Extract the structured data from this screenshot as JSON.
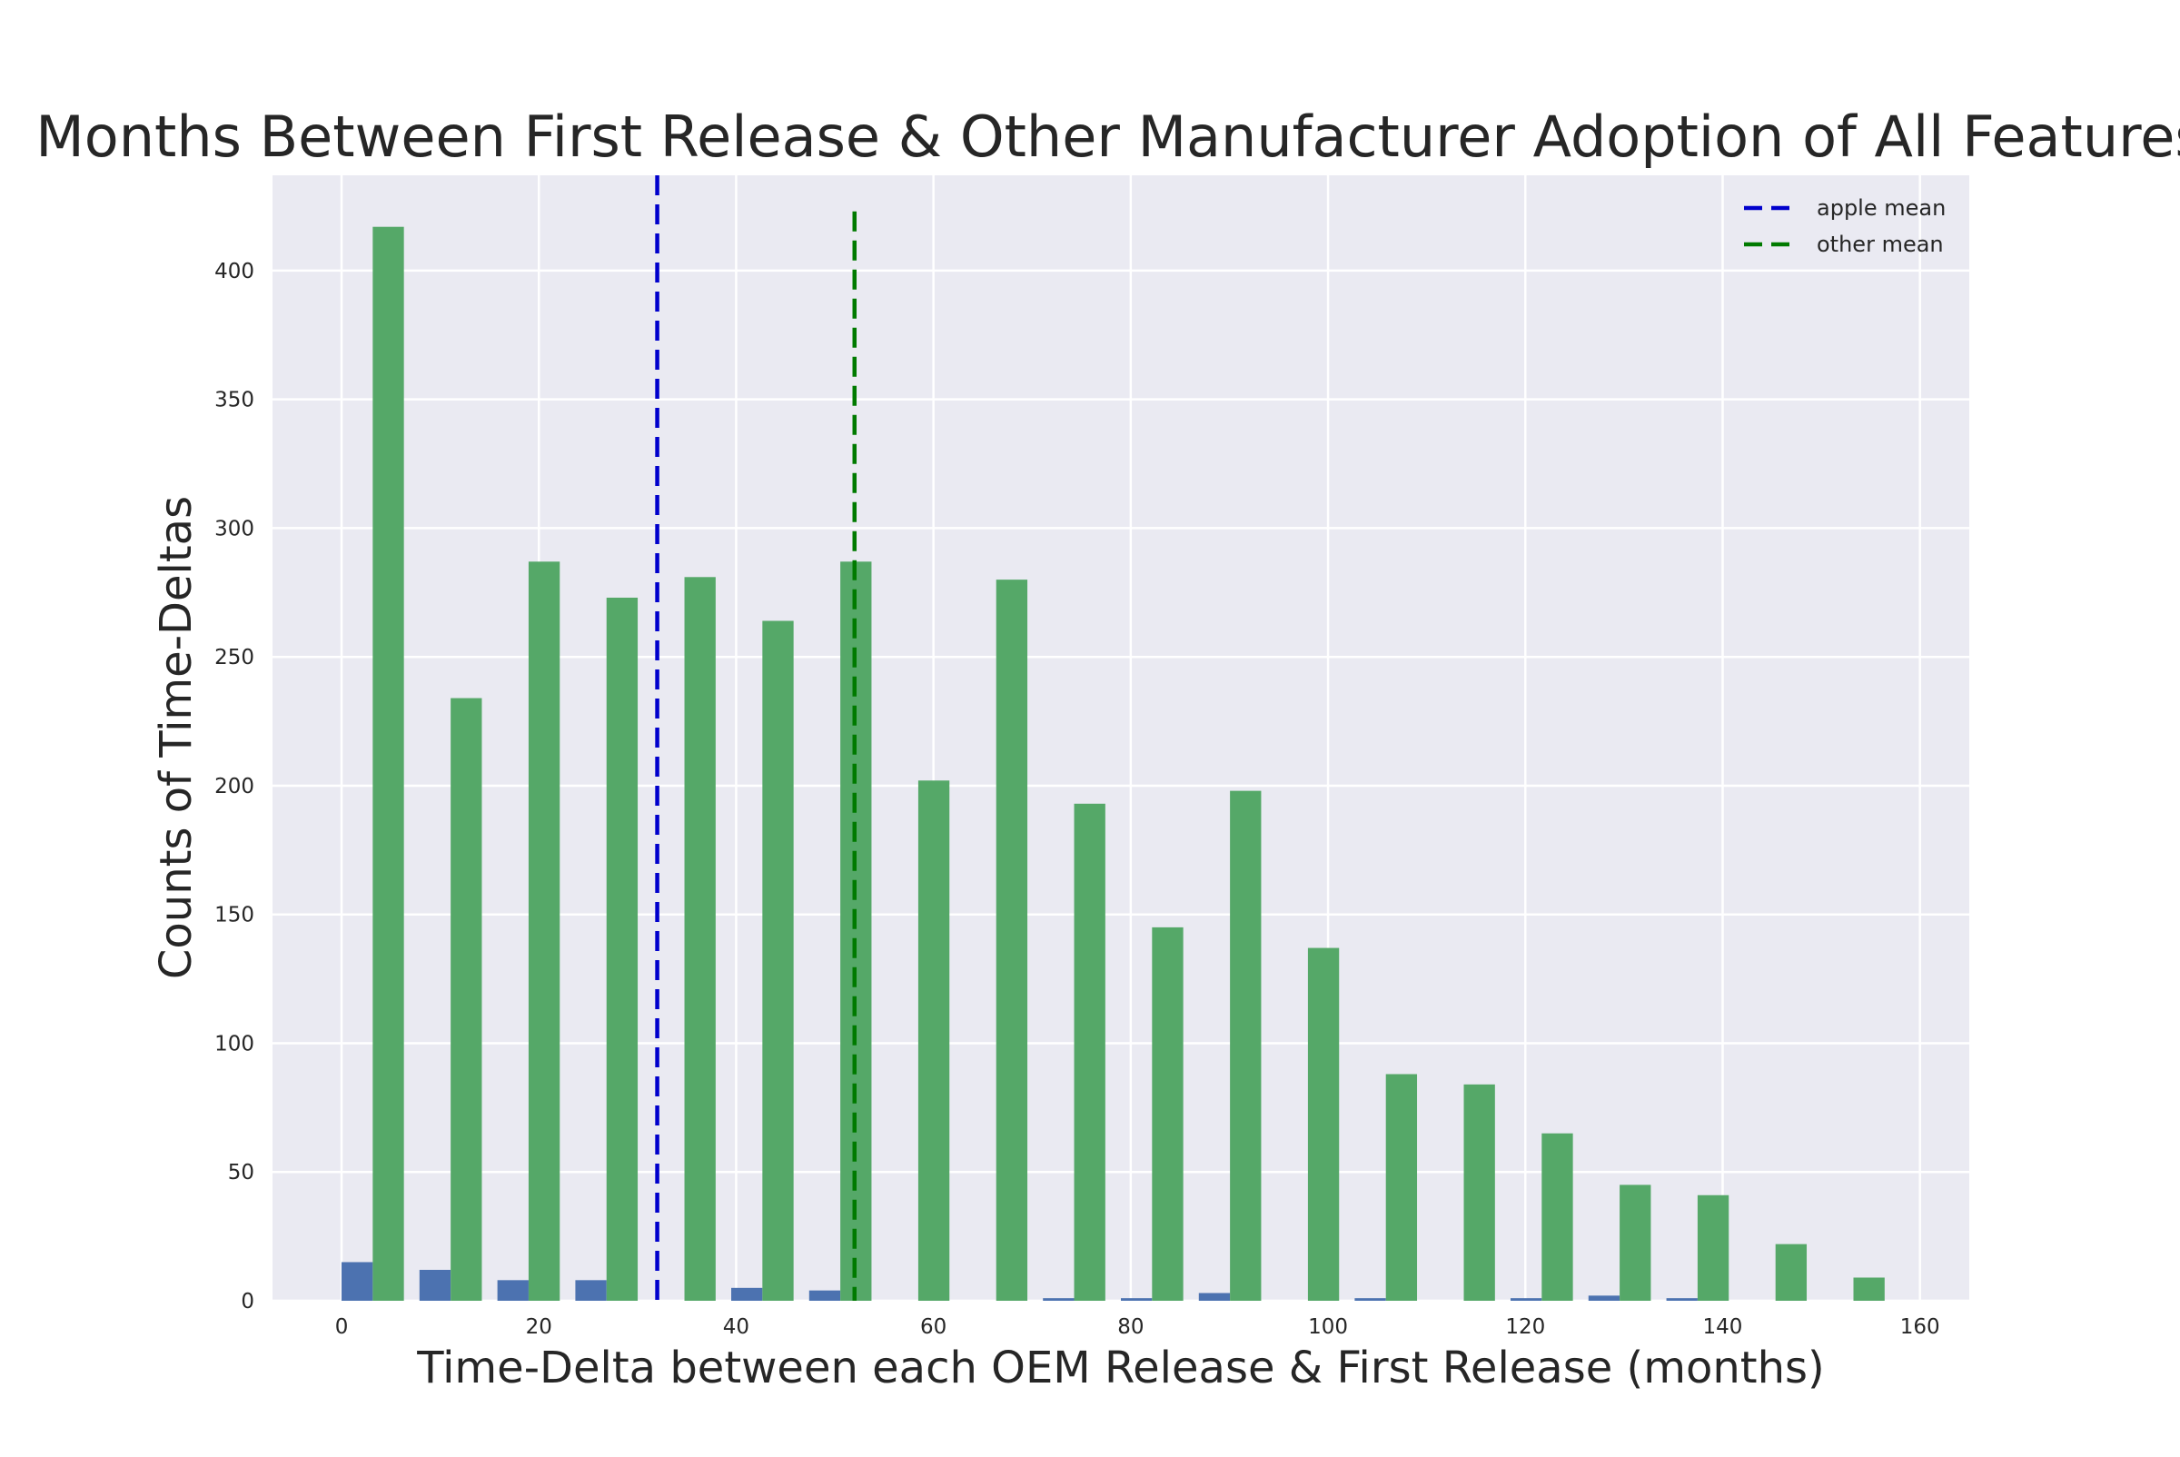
{
  "chart_data": {
    "type": "bar",
    "title": "Months Between First Release & Other Manufacturer Adoption of All Features",
    "xlabel": "Time-Delta between each OEM Release & First Release (months)",
    "ylabel": "Counts of Time-Deltas",
    "xlim": [
      -7,
      165
    ],
    "ylim": [
      0,
      437
    ],
    "x_ticks": [
      0,
      20,
      40,
      60,
      80,
      100,
      120,
      140,
      160
    ],
    "y_ticks": [
      0,
      50,
      100,
      150,
      200,
      250,
      300,
      350,
      400
    ],
    "grid": true,
    "legend_position": "top-right",
    "background_color": "#EAEAF2",
    "bins": [
      [
        0,
        7.9
      ],
      [
        7.9,
        15.8
      ],
      [
        15.8,
        23.7
      ],
      [
        23.7,
        31.6
      ],
      [
        31.6,
        39.5
      ],
      [
        39.5,
        47.4
      ],
      [
        47.4,
        55.3
      ],
      [
        55.3,
        63.2
      ],
      [
        63.2,
        71.1
      ],
      [
        71.1,
        79
      ],
      [
        79,
        86.9
      ],
      [
        86.9,
        94.8
      ],
      [
        94.8,
        102.7
      ],
      [
        102.7,
        110.6
      ],
      [
        110.6,
        118.5
      ],
      [
        118.5,
        126.4
      ],
      [
        126.4,
        134.3
      ],
      [
        134.3,
        142.2
      ],
      [
        142.2,
        150.1
      ],
      [
        150.1,
        158
      ]
    ],
    "series": [
      {
        "name": "apple",
        "color": "#4C72B0",
        "values": [
          15,
          12,
          8,
          8,
          0,
          5,
          4,
          0,
          0,
          1,
          1,
          3,
          0,
          1,
          0,
          1,
          2,
          1,
          0,
          0
        ]
      },
      {
        "name": "other",
        "color": "#55A868",
        "values": [
          417,
          234,
          287,
          273,
          281,
          264,
          287,
          202,
          280,
          193,
          145,
          198,
          137,
          88,
          84,
          65,
          45,
          41,
          22,
          9
        ]
      }
    ],
    "mean_lines": [
      {
        "name": "apple mean",
        "label": "apple mean",
        "x": 32,
        "color": "#0000CC",
        "style": "dashed"
      },
      {
        "name": "other mean",
        "label": "other mean",
        "x": 52,
        "color": "#007A00",
        "style": "dashed"
      }
    ]
  }
}
